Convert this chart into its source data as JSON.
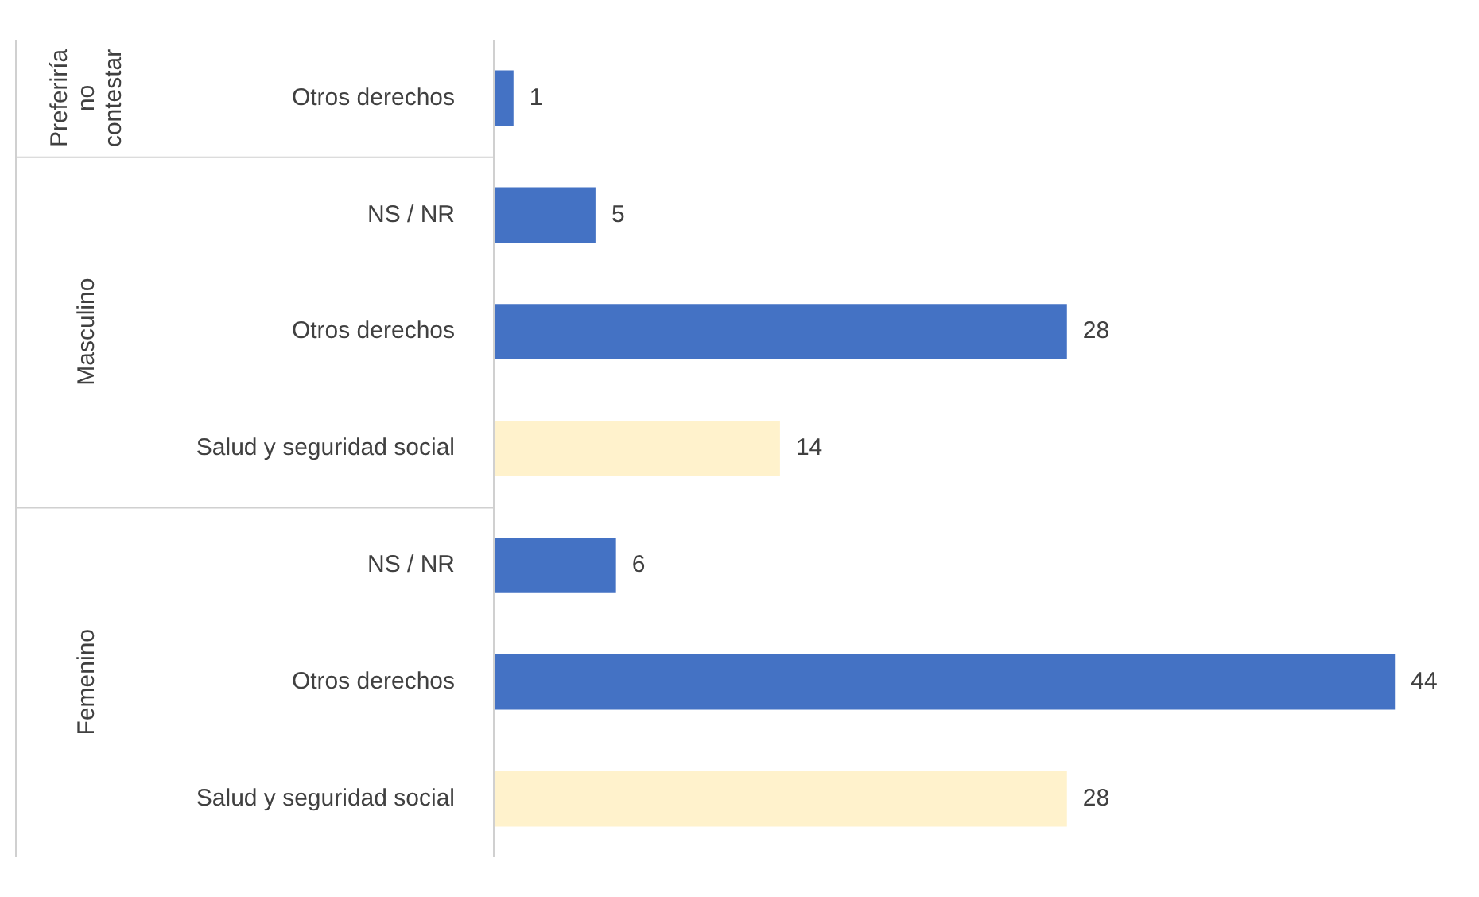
{
  "chart_data": {
    "type": "bar",
    "orientation": "horizontal",
    "categories": [
      "Otros derechos",
      "NS / NR",
      "Otros derechos",
      "Salud y seguridad social",
      "NS / NR",
      "Otros derechos",
      "Salud y seguridad social"
    ],
    "values": [
      1,
      5,
      28,
      14,
      6,
      44,
      28
    ],
    "colors": [
      "#4472c4",
      "#4472c4",
      "#4472c4",
      "#fff2cc",
      "#4472c4",
      "#4472c4",
      "#fff2cc"
    ],
    "annotations": [
      "Preferiría no contestar",
      "Masculino",
      "Femenino"
    ],
    "data_labels": true,
    "legend": false
  }
}
